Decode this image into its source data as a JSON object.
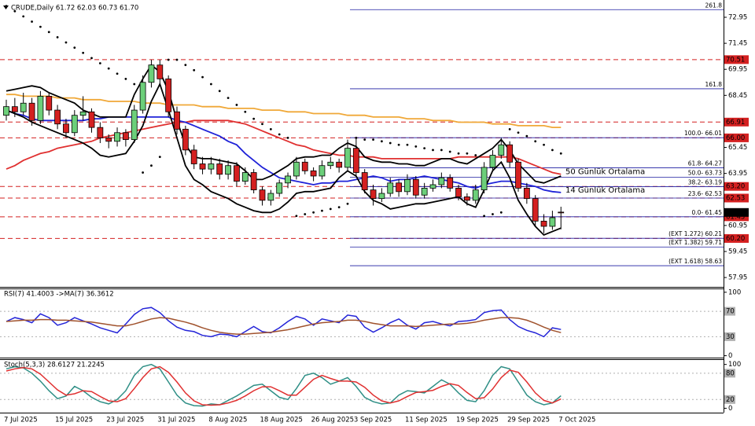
{
  "chart_data": [
    {
      "type": "candlestick",
      "title": "CRUDE,Daily 61.72 62.03 60.73 61.70",
      "categories": [
        "7 Jul 2025",
        null,
        null,
        null,
        null,
        null,
        "15 Jul 2025",
        null,
        null,
        null,
        null,
        null,
        "23 Jul 2025",
        null,
        null,
        null,
        null,
        null,
        "31 Jul 2025",
        null,
        null,
        null,
        null,
        null,
        "8 Aug 2025",
        null,
        null,
        null,
        null,
        null,
        "18 Aug 2025",
        null,
        null,
        null,
        null,
        null,
        "26 Aug 2025",
        null,
        null,
        null,
        null,
        "3 Sep 2025",
        null,
        null,
        null,
        null,
        null,
        "11 Sep 2025",
        null,
        null,
        null,
        null,
        null,
        "19 Sep 2025",
        null,
        null,
        null,
        null,
        null,
        "29 Sep 2025",
        null,
        null,
        null,
        null,
        null,
        "7 Oct 2025"
      ],
      "open": [
        67.3,
        67.8,
        67.5,
        68.0,
        67.0,
        68.4,
        67.6,
        66.8,
        66.3,
        67.3,
        67.5,
        66.6,
        66.0,
        65.8,
        66.3,
        65.9,
        67.6,
        69.2,
        70.2,
        69.4,
        67.5,
        66.5,
        65.3,
        64.5,
        64.2,
        64.5,
        63.9,
        64.4,
        63.5,
        64.0,
        63.0,
        62.4,
        62.8,
        63.4,
        63.8,
        64.6,
        64.1,
        63.8,
        64.4,
        64.6,
        64.3,
        65.4,
        64.0,
        63.0,
        62.5,
        62.8,
        63.4,
        62.9,
        63.6,
        62.7,
        63.1,
        63.3,
        63.7,
        63.1,
        62.6,
        62.4,
        63.0,
        64.3,
        65.0,
        65.6,
        64.6,
        63.1,
        62.5,
        61.2,
        60.9,
        61.72
      ],
      "high": [
        68.2,
        68.3,
        68.6,
        68.3,
        68.7,
        68.6,
        67.9,
        67.1,
        67.6,
        68.4,
        67.7,
        66.9,
        66.2,
        66.6,
        66.5,
        67.9,
        69.6,
        70.5,
        70.5,
        69.6,
        67.8,
        66.7,
        65.6,
        64.9,
        64.9,
        64.8,
        64.7,
        64.6,
        64.3,
        64.2,
        63.2,
        63.0,
        63.6,
        64.0,
        64.9,
        64.8,
        64.3,
        64.7,
        64.9,
        64.8,
        65.9,
        66.0,
        64.2,
        63.3,
        63.1,
        63.7,
        63.6,
        63.9,
        63.8,
        63.4,
        63.6,
        64.0,
        63.9,
        63.3,
        62.8,
        63.3,
        64.6,
        65.3,
        66.0,
        65.8,
        64.8,
        63.4,
        62.7,
        61.6,
        61.8,
        62.03
      ],
      "low": [
        67.0,
        67.2,
        67.3,
        66.7,
        66.8,
        67.3,
        66.5,
        66.0,
        66.1,
        67.0,
        66.3,
        65.7,
        65.4,
        65.5,
        65.5,
        65.7,
        67.4,
        68.9,
        69.0,
        67.2,
        66.2,
        65.0,
        64.2,
        63.9,
        63.9,
        63.6,
        63.6,
        63.2,
        63.3,
        62.8,
        62.1,
        62.1,
        62.6,
        63.1,
        63.6,
        63.9,
        63.5,
        63.6,
        64.2,
        64.0,
        64.1,
        63.8,
        62.8,
        62.1,
        62.3,
        62.6,
        62.6,
        62.7,
        62.5,
        62.5,
        62.9,
        63.1,
        62.9,
        62.4,
        62.1,
        62.2,
        62.8,
        64.1,
        64.8,
        64.3,
        62.9,
        62.2,
        60.9,
        60.5,
        60.7,
        60.73
      ],
      "close": [
        67.8,
        67.5,
        68.0,
        67.0,
        68.4,
        67.6,
        66.8,
        66.3,
        67.3,
        67.5,
        66.6,
        66.0,
        65.8,
        66.3,
        65.9,
        67.6,
        69.2,
        70.2,
        69.4,
        67.5,
        66.5,
        65.3,
        64.5,
        64.2,
        64.5,
        63.9,
        64.4,
        63.5,
        64.0,
        63.0,
        62.4,
        62.8,
        63.4,
        63.8,
        64.6,
        64.1,
        63.8,
        64.4,
        64.6,
        64.3,
        65.4,
        64.0,
        63.0,
        62.5,
        62.8,
        63.4,
        62.9,
        63.6,
        62.7,
        63.1,
        63.3,
        63.7,
        63.1,
        62.6,
        62.4,
        63.0,
        64.3,
        65.0,
        65.6,
        64.6,
        63.1,
        62.5,
        61.2,
        60.9,
        61.4,
        61.7
      ],
      "up_color": "#6ccf7a",
      "down_color": "#d42020",
      "overlays": [
        {
          "color": "#f0a838",
          "style": "line",
          "values": [
            68.5,
            68.5,
            68.4,
            68.4,
            68.4,
            68.4,
            68.3,
            68.3,
            68.3,
            68.2,
            68.2,
            68.2,
            68.1,
            68.1,
            68.1,
            68.1,
            68.0,
            68.0,
            68.0,
            67.9,
            67.9,
            67.9,
            67.9,
            67.8,
            67.8,
            67.8,
            67.7,
            67.7,
            67.7,
            67.7,
            67.6,
            67.6,
            67.6,
            67.5,
            67.5,
            67.5,
            67.4,
            67.4,
            67.4,
            67.4,
            67.3,
            67.3,
            67.3,
            67.2,
            67.2,
            67.2,
            67.2,
            67.1,
            67.1,
            67.1,
            67.0,
            67.0,
            67.0,
            66.9,
            66.9,
            66.9,
            66.9,
            66.8,
            66.8,
            66.8,
            66.7,
            66.7,
            66.7,
            66.7,
            66.6,
            66.6
          ]
        },
        {
          "name": "50 Günlük Ortalama",
          "color": "#e03030",
          "style": "line",
          "values": [
            64.2,
            64.4,
            64.7,
            64.9,
            65.1,
            65.2,
            65.4,
            65.5,
            65.6,
            65.7,
            65.8,
            66.0,
            66.1,
            66.2,
            66.3,
            66.4,
            66.5,
            66.6,
            66.7,
            66.8,
            66.9,
            66.9,
            67.0,
            67.0,
            67.0,
            67.0,
            67.0,
            66.9,
            66.8,
            66.6,
            66.4,
            66.2,
            66.0,
            65.8,
            65.6,
            65.5,
            65.3,
            65.2,
            65.1,
            65.0,
            65.0,
            64.9,
            64.9,
            64.9,
            64.8,
            64.8,
            64.8,
            64.8,
            64.8,
            64.8,
            64.8,
            64.8,
            64.8,
            64.9,
            64.9,
            64.9,
            64.9,
            64.9,
            64.9,
            64.9,
            64.8,
            64.6,
            64.4,
            64.2,
            64.0,
            63.9
          ]
        },
        {
          "name": "14 Günlük Ortalama",
          "color": "#1f22d8",
          "style": "line",
          "values": [
            67.6,
            67.4,
            67.3,
            67.1,
            67.0,
            67.0,
            67.0,
            67.0,
            67.0,
            67.0,
            67.1,
            67.1,
            67.2,
            67.2,
            67.2,
            67.2,
            67.2,
            67.2,
            67.2,
            67.2,
            67.0,
            66.9,
            66.7,
            66.5,
            66.3,
            66.1,
            65.8,
            65.6,
            65.1,
            64.7,
            64.3,
            64.0,
            63.7,
            63.6,
            63.5,
            63.4,
            63.3,
            63.4,
            63.4,
            63.5,
            63.5,
            63.6,
            63.7,
            63.8,
            63.7,
            63.5,
            63.6,
            63.6,
            63.7,
            63.8,
            63.7,
            63.6,
            63.5,
            63.4,
            63.2,
            63.1,
            63.3,
            63.4,
            63.5,
            63.5,
            63.4,
            63.3,
            63.2,
            63.0,
            62.9,
            62.85
          ]
        },
        {
          "color": "#000000",
          "style": "line",
          "values": [
            68.7,
            68.8,
            68.9,
            69.0,
            68.9,
            68.6,
            68.4,
            68.2,
            68.0,
            67.6,
            67.4,
            67.2,
            67.2,
            67.2,
            67.2,
            68.5,
            69.4,
            70.2,
            69.8,
            68.7,
            67.0,
            65.6,
            64.9,
            64.8,
            64.8,
            64.7,
            64.6,
            64.5,
            64.1,
            63.6,
            63.6,
            63.8,
            64.1,
            64.4,
            64.8,
            64.9,
            64.9,
            65.0,
            65.0,
            65.4,
            65.7,
            65.5,
            64.9,
            64.7,
            64.6,
            64.6,
            64.5,
            64.5,
            64.4,
            64.4,
            64.6,
            64.8,
            64.8,
            64.6,
            64.5,
            64.8,
            65.1,
            65.4,
            65.9,
            65.3,
            64.5,
            64.0,
            63.5,
            63.4,
            63.6,
            63.8
          ]
        },
        {
          "color": "#000000",
          "style": "line",
          "values": [
            67.6,
            67.4,
            67.2,
            66.9,
            66.7,
            66.5,
            66.3,
            66.1,
            65.9,
            65.7,
            65.4,
            65.0,
            64.9,
            65.0,
            65.1,
            65.8,
            66.7,
            68.1,
            69.1,
            67.6,
            66.0,
            64.4,
            63.6,
            63.3,
            62.9,
            62.7,
            62.5,
            62.2,
            62.0,
            61.8,
            61.7,
            61.7,
            61.9,
            62.3,
            62.8,
            62.9,
            62.9,
            63.0,
            63.1,
            63.7,
            64.1,
            63.8,
            62.9,
            62.4,
            62.2,
            61.9,
            62.0,
            62.1,
            62.2,
            62.2,
            62.3,
            62.4,
            62.5,
            62.6,
            62.2,
            62.0,
            63.0,
            64.1,
            64.6,
            63.7,
            62.4,
            61.6,
            60.9,
            60.4,
            60.6,
            60.8
          ]
        },
        {
          "color": "#000000",
          "style": "dots",
          "values": [
            73.6,
            73.3,
            73.0,
            72.7,
            72.4,
            72.1,
            71.8,
            71.5,
            71.2,
            70.9,
            70.6,
            70.3,
            70.0,
            69.7,
            69.4,
            69.1,
            64.0,
            64.4,
            64.9,
            70.5,
            70.5,
            70.2,
            69.9,
            69.5,
            69.1,
            68.7,
            68.3,
            67.9,
            67.5,
            67.1,
            66.8,
            66.5,
            66.2,
            66.0,
            61.5,
            61.6,
            61.7,
            61.8,
            61.9,
            62.0,
            62.2,
            66.0,
            65.9,
            65.9,
            65.8,
            65.7,
            65.6,
            65.6,
            65.5,
            65.4,
            65.3,
            65.3,
            65.2,
            65.1,
            65.1,
            65.0,
            61.5,
            61.6,
            61.7,
            66.5,
            66.3,
            66.1,
            65.8,
            65.6,
            65.3,
            65.1
          ]
        }
      ],
      "fib_color": "#1c1ca0",
      "fib_levels": [
        {
          "label": "261.8",
          "value": 73.39
        },
        {
          "label": "161.8",
          "value": 68.83
        },
        {
          "label": "100.0- 66.01",
          "value": 66.01
        },
        {
          "label": "61.8- 64.27",
          "value": 64.27
        },
        {
          "label": "50.0- 63.73",
          "value": 63.73
        },
        {
          "label": "38.2- 63.19",
          "value": 63.19
        },
        {
          "label": "23.6- 62.53",
          "value": 62.53
        },
        {
          "label": "0.0- 61.45",
          "value": 61.45
        },
        {
          "label": "(EXT 1.272) 60.21",
          "value": 60.21
        },
        {
          "label": "(EXT 1.382) 59.71",
          "value": 59.71
        },
        {
          "label": "(EXT 1.618) 58.63",
          "value": 58.63
        }
      ],
      "levels": [
        70.51,
        66.91,
        {
          "value": 66,
          "label": "66.00"
        },
        {
          "value": 63.2,
          "label": "63.20"
        },
        62.53,
        61.45,
        {
          "value": 60.2,
          "label": "60.20"
        }
      ],
      "level_color": "#d42020",
      "level_style": "dashed",
      "last_price": {
        "value": 61.7,
        "label": "61.70"
      },
      "ylim": [
        57.41,
        73.81
      ],
      "yticks": [
        72.95,
        71.45,
        69.95,
        68.45,
        66.95,
        65.45,
        63.95,
        62.45,
        60.95,
        59.45,
        57.95
      ]
    },
    {
      "type": "line",
      "title": "RSI(7) 41.4003 ->MA(7) 36.3612",
      "series": [
        {
          "color": "#2424d8",
          "values": [
            54,
            60,
            57,
            52,
            66,
            60,
            48,
            52,
            60,
            55,
            50,
            44,
            40,
            36,
            50,
            65,
            74,
            76,
            68,
            55,
            45,
            40,
            38,
            32,
            30,
            34,
            33,
            30,
            38,
            46,
            38,
            36,
            44,
            54,
            62,
            58,
            48,
            58,
            55,
            52,
            64,
            62,
            45,
            37,
            44,
            52,
            58,
            48,
            42,
            52,
            54,
            50,
            47,
            54,
            55,
            57,
            68,
            71,
            72,
            57,
            46,
            40,
            36,
            30,
            44,
            41.4003
          ]
        },
        {
          "color": "#a0522d",
          "values": [
            54,
            55,
            56,
            56,
            57,
            57,
            56,
            56,
            55,
            54,
            53,
            51,
            49,
            47,
            47,
            50,
            54,
            58,
            60,
            59,
            56,
            53,
            49,
            44,
            40,
            37,
            35,
            34,
            34,
            35,
            36,
            37,
            39,
            41,
            44,
            47,
            50,
            52,
            53,
            54,
            56,
            56,
            54,
            51,
            49,
            47,
            47,
            47,
            46,
            47,
            48,
            49,
            50,
            50,
            51,
            53,
            56,
            58,
            60,
            60,
            59,
            56,
            51,
            45,
            40,
            36.3612
          ]
        }
      ],
      "levels": [
        70,
        30
      ],
      "level_color": "#b0b0b0",
      "level_style": "dotted",
      "ylim": [
        -3,
        106
      ],
      "yticks": [
        100,
        0
      ]
    },
    {
      "type": "line",
      "title": "Stoch(5,3,3) 28.6127 21.2245",
      "series": [
        {
          "color": "#2f8f86",
          "values": [
            90,
            95,
            92,
            80,
            62,
            40,
            22,
            28,
            50,
            40,
            25,
            15,
            10,
            20,
            40,
            75,
            95,
            100,
            90,
            60,
            30,
            12,
            6,
            5,
            10,
            8,
            18,
            28,
            40,
            52,
            55,
            40,
            25,
            20,
            45,
            75,
            80,
            70,
            55,
            62,
            70,
            50,
            25,
            15,
            10,
            12,
            30,
            40,
            38,
            35,
            50,
            65,
            55,
            35,
            18,
            15,
            40,
            75,
            95,
            90,
            60,
            30,
            15,
            8,
            12,
            28.6127
          ]
        },
        {
          "color": "#e03030",
          "values": [
            85,
            90,
            93,
            90,
            78,
            60,
            42,
            30,
            33,
            40,
            38,
            27,
            17,
            15,
            22,
            45,
            70,
            90,
            95,
            82,
            60,
            35,
            17,
            8,
            7,
            8,
            12,
            18,
            28,
            40,
            49,
            49,
            40,
            30,
            30,
            48,
            66,
            75,
            68,
            62,
            62,
            60,
            48,
            30,
            17,
            12,
            17,
            27,
            36,
            38,
            41,
            50,
            56,
            52,
            36,
            22,
            24,
            44,
            70,
            87,
            82,
            60,
            35,
            18,
            12,
            21.2245
          ]
        }
      ],
      "levels": [
        80,
        20
      ],
      "level_color": "#b0b0b0",
      "level_style": "dotted",
      "ylim": [
        -10,
        112
      ],
      "yticks": [
        100,
        0
      ]
    }
  ]
}
